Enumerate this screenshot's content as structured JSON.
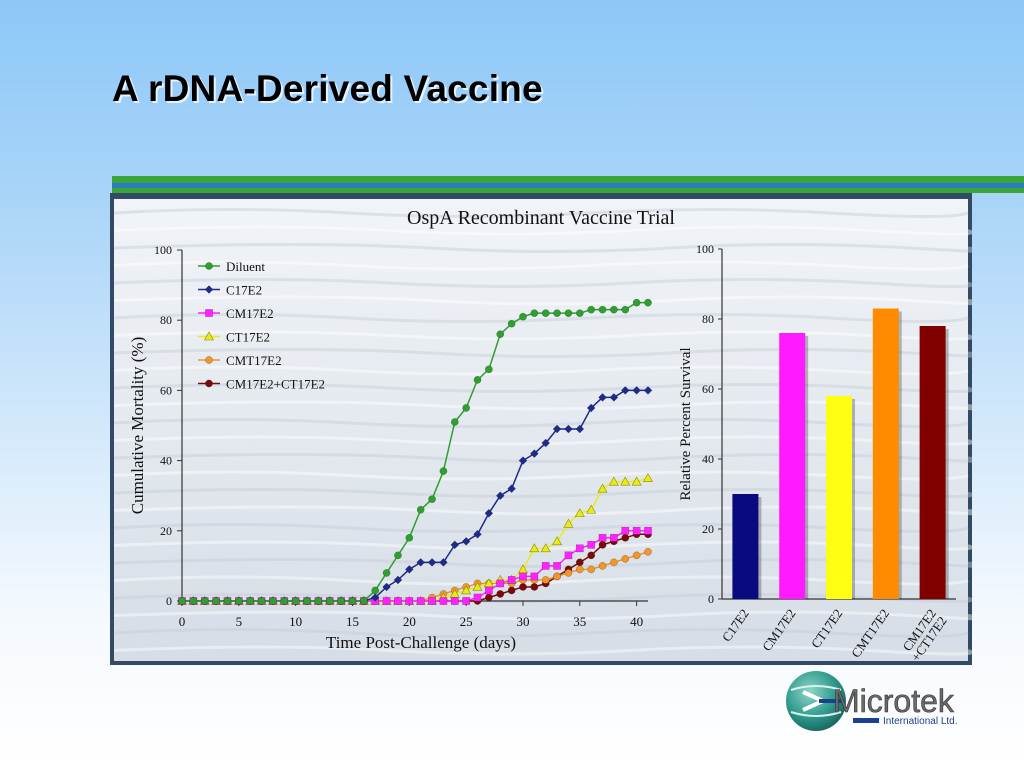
{
  "slide": {
    "title": "A rDNA-Derived Vaccine",
    "logo": {
      "name": "Microtek",
      "subtitle": "International Ltd."
    }
  },
  "colors": {
    "title_rule_green": "#3aa63a",
    "title_rule_blue": "#2d7bbf",
    "Diluent": "#2ea02e",
    "C17E2": "#1f2a8a",
    "CM17E2": "#ff22ff",
    "CT17E2": "#eaea1a",
    "CMT17E2": "#f0962a",
    "CM17E2+CT17E2": "#7a0a0a",
    "bar_C17E2": "#0a0a80",
    "bar_CM17E2": "#ff1aff",
    "bar_CT17E2": "#ffff14",
    "bar_CMT17E2": "#ff8c00",
    "bar_CM17E2_CT17E2": "#800000"
  },
  "chart_data": [
    {
      "type": "line",
      "title": "OspA Recombinant Vaccine Trial",
      "xlabel": "Time Post-Challenge (days)",
      "ylabel": "Cumulative Mortality (%)",
      "xlim": [
        0,
        41
      ],
      "ylim": [
        0,
        100
      ],
      "xticks": [
        0,
        5,
        10,
        15,
        20,
        25,
        30,
        35,
        40
      ],
      "yticks": [
        0,
        20,
        40,
        60,
        80,
        100
      ],
      "legend": "top-left",
      "grid": false,
      "x": [
        0,
        1,
        2,
        3,
        4,
        5,
        6,
        7,
        8,
        9,
        10,
        11,
        12,
        13,
        14,
        15,
        16,
        17,
        18,
        19,
        20,
        21,
        22,
        23,
        24,
        25,
        26,
        27,
        28,
        29,
        30,
        31,
        32,
        33,
        34,
        35,
        36,
        37,
        38,
        39,
        40,
        41
      ],
      "series": [
        {
          "name": "Diluent",
          "marker": "circle",
          "values": [
            0,
            0,
            0,
            0,
            0,
            0,
            0,
            0,
            0,
            0,
            0,
            0,
            0,
            0,
            0,
            0,
            0,
            3,
            8,
            13,
            18,
            26,
            29,
            37,
            51,
            55,
            63,
            66,
            76,
            79,
            81,
            82,
            82,
            82,
            82,
            82,
            83,
            83,
            83,
            83,
            85,
            85
          ]
        },
        {
          "name": "C17E2",
          "marker": "diamond",
          "values": [
            0,
            0,
            0,
            0,
            0,
            0,
            0,
            0,
            0,
            0,
            0,
            0,
            0,
            0,
            0,
            0,
            0,
            1,
            4,
            6,
            9,
            11,
            11,
            11,
            16,
            17,
            19,
            25,
            30,
            32,
            40,
            42,
            45,
            49,
            49,
            49,
            55,
            58,
            58,
            60,
            60,
            60
          ]
        },
        {
          "name": "CM17E2",
          "marker": "square",
          "values": [
            0,
            0,
            0,
            0,
            0,
            0,
            0,
            0,
            0,
            0,
            0,
            0,
            0,
            0,
            0,
            0,
            0,
            0,
            0,
            0,
            0,
            0,
            0,
            0,
            0,
            0,
            1,
            3,
            5,
            6,
            7,
            7,
            10,
            10,
            13,
            15,
            16,
            18,
            18,
            20,
            20,
            20
          ]
        },
        {
          "name": "CT17E2",
          "marker": "triangle",
          "values": [
            0,
            0,
            0,
            0,
            0,
            0,
            0,
            0,
            0,
            0,
            0,
            0,
            0,
            0,
            0,
            0,
            0,
            0,
            0,
            0,
            0,
            0,
            0,
            1,
            2,
            3,
            4,
            5,
            6,
            6,
            9,
            15,
            15,
            17,
            22,
            25,
            26,
            32,
            34,
            34,
            34,
            35
          ]
        },
        {
          "name": "CMT17E2",
          "marker": "circle",
          "values": [
            0,
            0,
            0,
            0,
            0,
            0,
            0,
            0,
            0,
            0,
            0,
            0,
            0,
            0,
            0,
            0,
            0,
            0,
            0,
            0,
            0,
            0,
            1,
            2,
            3,
            4,
            5,
            5,
            5,
            5,
            6,
            6,
            6,
            7,
            8,
            9,
            9,
            10,
            11,
            12,
            13,
            14
          ]
        },
        {
          "name": "CM17E2+CT17E2",
          "marker": "circle",
          "values": [
            0,
            0,
            0,
            0,
            0,
            0,
            0,
            0,
            0,
            0,
            0,
            0,
            0,
            0,
            0,
            0,
            0,
            0,
            0,
            0,
            0,
            0,
            0,
            0,
            0,
            0,
            0,
            1,
            2,
            3,
            4,
            4,
            5,
            7,
            9,
            11,
            13,
            16,
            17,
            18,
            19,
            19
          ]
        }
      ]
    },
    {
      "type": "bar",
      "ylabel": "Relative Percent Survival",
      "ylim": [
        0,
        100
      ],
      "yticks": [
        0,
        20,
        40,
        60,
        80,
        100
      ],
      "categories": [
        "C17E2",
        "CM17E2",
        "CT17E2",
        "CMT17E2",
        "CM17E2\n+CT17E2"
      ],
      "values": [
        30,
        76,
        58,
        83,
        78
      ]
    }
  ]
}
